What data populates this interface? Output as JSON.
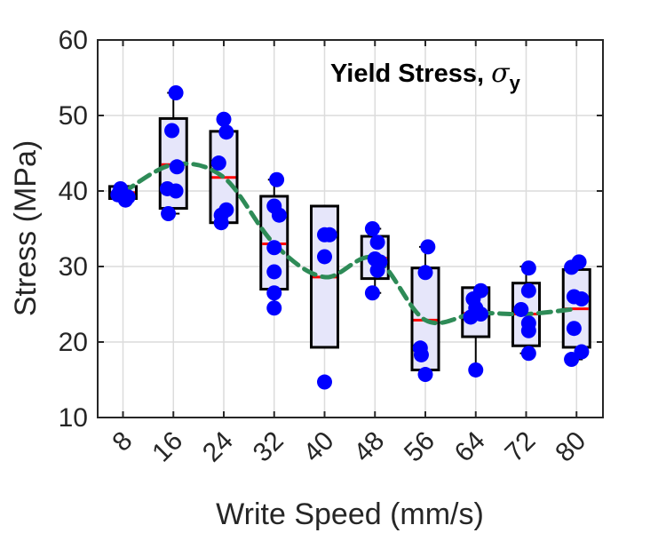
{
  "chart_data": {
    "type": "box",
    "title": "Yield Stress, ",
    "title_symbol": "σ",
    "title_subscript": "y",
    "xlabel": "Write Speed (mm/s)",
    "ylabel": "Stress (MPa)",
    "ylim": [
      10,
      60
    ],
    "yticks": [
      10,
      20,
      30,
      40,
      50,
      60
    ],
    "grid": true,
    "categories": [
      "8",
      "16",
      "24",
      "32",
      "40",
      "48",
      "56",
      "64",
      "72",
      "80"
    ],
    "boxes": [
      {
        "q1": 39.0,
        "median": 39.8,
        "q3": 40.6,
        "whisker_low": 39.0,
        "whisker_high": 40.6
      },
      {
        "q1": 37.7,
        "median": 43.5,
        "q3": 49.6,
        "whisker_low": 37.0,
        "whisker_high": 53.0
      },
      {
        "q1": 35.8,
        "median": 41.8,
        "q3": 47.9,
        "whisker_low": 35.8,
        "whisker_high": 49.5
      },
      {
        "q1": 27.0,
        "median": 33.0,
        "q3": 39.3,
        "whisker_low": 24.5,
        "whisker_high": 41.5
      },
      {
        "q1": 19.3,
        "median": 28.6,
        "q3": 38.0,
        "whisker_low": 19.3,
        "whisker_high": 38.0
      },
      {
        "q1": 28.4,
        "median": 31.1,
        "q3": 34.0,
        "whisker_low": 26.5,
        "whisker_high": 35.0
      },
      {
        "q1": 16.3,
        "median": 22.9,
        "q3": 29.8,
        "whisker_low": 15.7,
        "whisker_high": 32.6
      },
      {
        "q1": 20.7,
        "median": 23.8,
        "q3": 27.2,
        "whisker_low": 16.3,
        "whisker_high": 27.2
      },
      {
        "q1": 19.5,
        "median": 23.7,
        "q3": 27.8,
        "whisker_low": 18.5,
        "whisker_high": 30.0
      },
      {
        "q1": 19.3,
        "median": 24.4,
        "q3": 29.6,
        "whisker_low": 17.7,
        "whisker_high": 30.6
      }
    ],
    "points": [
      [
        [
          -0.05,
          40.3
        ],
        [
          0.1,
          39.2
        ],
        [
          -0.1,
          39.5
        ],
        [
          0.05,
          38.8
        ]
      ],
      [
        [
          0.05,
          53.0
        ],
        [
          -0.03,
          48.0
        ],
        [
          0.07,
          43.2
        ],
        [
          -0.12,
          40.3
        ],
        [
          0.05,
          40.0
        ],
        [
          -0.1,
          37.0
        ]
      ],
      [
        [
          0.0,
          49.5
        ],
        [
          0.05,
          47.8
        ],
        [
          -0.1,
          43.7
        ],
        [
          0.05,
          37.5
        ],
        [
          -0.05,
          36.8
        ],
        [
          -0.05,
          35.8
        ]
      ],
      [
        [
          0.05,
          41.5
        ],
        [
          0.0,
          38.0
        ],
        [
          0.1,
          36.8
        ],
        [
          0.0,
          32.5
        ],
        [
          0.0,
          29.3
        ],
        [
          0.0,
          26.5
        ],
        [
          0.0,
          24.5
        ]
      ],
      [
        [
          0.0,
          34.2
        ],
        [
          0.1,
          34.2
        ],
        [
          0.0,
          31.3
        ],
        [
          0.0,
          14.7
        ]
      ],
      [
        [
          -0.05,
          35.0
        ],
        [
          0.05,
          33.2
        ],
        [
          0.0,
          31.0
        ],
        [
          0.1,
          30.6
        ],
        [
          0.05,
          29.5
        ],
        [
          -0.05,
          26.5
        ]
      ],
      [
        [
          0.05,
          32.6
        ],
        [
          0.0,
          29.2
        ],
        [
          -0.1,
          19.2
        ],
        [
          -0.08,
          18.3
        ],
        [
          0.0,
          15.7
        ]
      ],
      [
        [
          0.1,
          26.8
        ],
        [
          -0.05,
          25.7
        ],
        [
          0.0,
          24.5
        ],
        [
          0.1,
          23.7
        ],
        [
          -0.1,
          23.3
        ],
        [
          0.0,
          16.3
        ]
      ],
      [
        [
          0.05,
          29.8
        ],
        [
          0.05,
          26.8
        ],
        [
          -0.1,
          24.3
        ],
        [
          0.05,
          22.5
        ],
        [
          0.05,
          21.5
        ],
        [
          0.05,
          18.5
        ]
      ],
      [
        [
          0.05,
          30.6
        ],
        [
          -0.1,
          29.9
        ],
        [
          -0.05,
          26.0
        ],
        [
          0.1,
          25.7
        ],
        [
          -0.05,
          21.8
        ],
        [
          0.1,
          18.7
        ],
        [
          -0.1,
          17.7
        ]
      ]
    ],
    "trend": [
      39.8,
      43.5,
      41.8,
      33.0,
      28.6,
      31.1,
      22.9,
      23.8,
      23.7,
      24.4
    ],
    "colors": {
      "box_fill": "#e6e6fa",
      "box_edge": "#000000",
      "median": "#ff0000",
      "points": "#0000ff",
      "trend": "#2e8b57",
      "grid": "#dcdcdc",
      "axis": "#262626"
    }
  }
}
